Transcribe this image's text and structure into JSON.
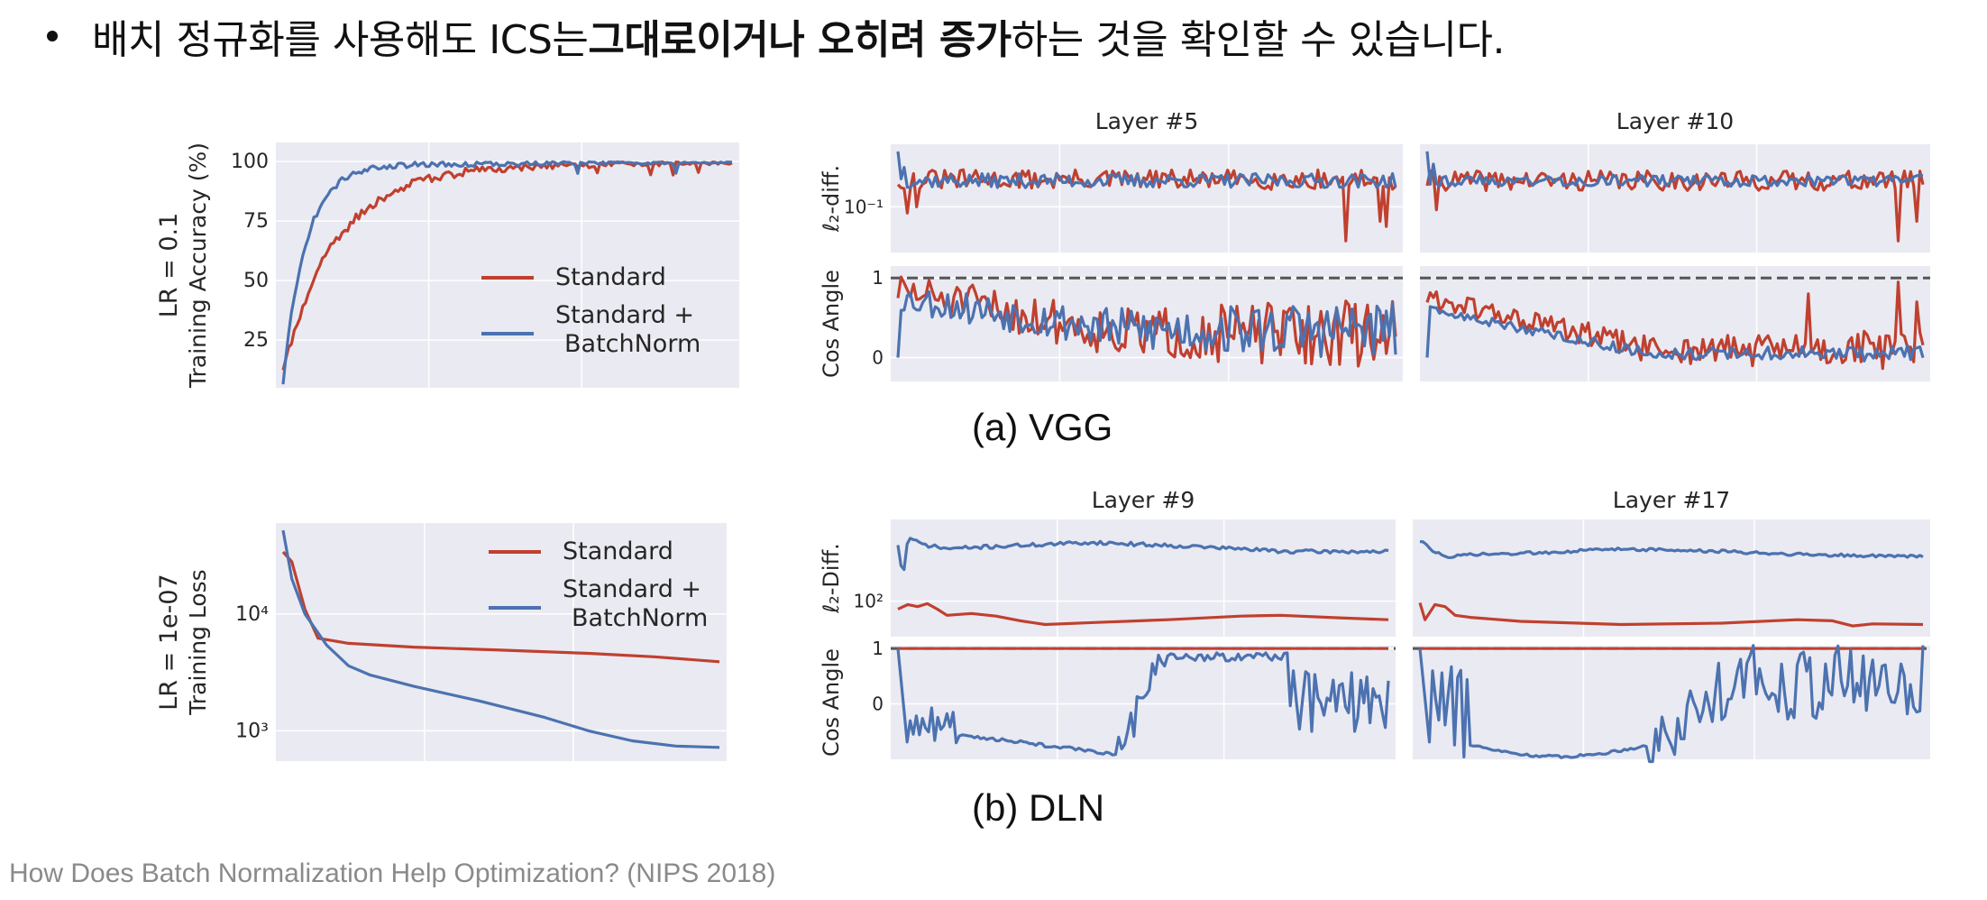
{
  "slide": {
    "bullet_parts": [
      "배치 정규화를 사용해도 ICS는 ",
      "그대로이거나 오히려 증가",
      "하는 것을 확인할 수 있습니다."
    ],
    "caption_a": "(a) VGG",
    "caption_b": "(b) DLN",
    "footer": "How Does Batch Normalization Help Optimization? (NIPS 2018)"
  },
  "colors": {
    "standard": "#c0402f",
    "batchnorm": "#4c72b0",
    "panel_bg": "#eaeaf2",
    "grid": "#ffffff",
    "dashed_ref": "#555555"
  },
  "legend": {
    "standard": "Standard",
    "batchnorm_line1": "Standard +",
    "batchnorm_line2": "BatchNorm"
  },
  "chart_data": [
    {
      "id": "vgg-accuracy",
      "type": "line",
      "row_label": "LR = 0.1",
      "ylabel": "Training Accuracy (%)",
      "yticks": [
        25,
        50,
        75,
        100
      ],
      "ylim": [
        5,
        108
      ],
      "xlim": [
        0,
        100
      ],
      "legend_placement": "center-right",
      "series": [
        {
          "name": "Standard",
          "color_key": "standard",
          "model": "sat",
          "start": 15,
          "end": 100,
          "rate": 0.085,
          "noise": 5,
          "seed": 11
        },
        {
          "name": "Standard + BatchNorm",
          "color_key": "batchnorm",
          "model": "sat",
          "start": 8,
          "end": 100,
          "rate": 0.2,
          "noise": 3,
          "seed": 23
        }
      ]
    },
    {
      "id": "dln-loss",
      "type": "line",
      "yscale": "log",
      "row_label": "LR = 1e-07",
      "ylabel": "Training Loss",
      "yticks": [
        {
          "value": 1000,
          "label": "10³"
        },
        {
          "value": 10000,
          "label": "10⁴"
        }
      ],
      "ylim": [
        550,
        60000
      ],
      "xlim": [
        0,
        100
      ],
      "legend_placement": "upper-right",
      "series": [
        {
          "name": "Standard",
          "color_key": "standard",
          "points": [
            [
              0,
              34000
            ],
            [
              2,
              28000
            ],
            [
              5,
              11000
            ],
            [
              8,
              6200
            ],
            [
              15,
              5600
            ],
            [
              30,
              5200
            ],
            [
              50,
              4900
            ],
            [
              70,
              4600
            ],
            [
              85,
              4300
            ],
            [
              100,
              3900
            ]
          ]
        },
        {
          "name": "Standard + BatchNorm",
          "color_key": "batchnorm",
          "points": [
            [
              0,
              52000
            ],
            [
              2,
              20000
            ],
            [
              5,
              10000
            ],
            [
              10,
              5400
            ],
            [
              15,
              3600
            ],
            [
              20,
              3000
            ],
            [
              30,
              2400
            ],
            [
              45,
              1800
            ],
            [
              60,
              1300
            ],
            [
              70,
              1000
            ],
            [
              80,
              820
            ],
            [
              90,
              740
            ],
            [
              100,
              720
            ]
          ]
        }
      ]
    },
    {
      "id": "vgg-layer5-l2",
      "type": "line",
      "title": "Layer #5",
      "ylabel": "ℓ₂-diff.",
      "yticks": [
        {
          "value": 0.1,
          "label": "10⁻¹"
        }
      ],
      "yscale": "log",
      "ylim": [
        0.02,
        0.9
      ],
      "xlim": [
        0,
        100
      ],
      "series": [
        {
          "name": "Standard",
          "color_key": "standard",
          "model": "noise",
          "base": 0.26,
          "rel": 0.35,
          "seed": 31,
          "dips": [
            [
              2,
              0.08
            ],
            [
              4,
              0.1
            ],
            [
              90,
              0.03
            ],
            [
              97,
              0.06
            ],
            [
              98,
              0.05
            ]
          ]
        },
        {
          "name": "Standard + BatchNorm",
          "color_key": "batchnorm",
          "model": "noise",
          "base": 0.25,
          "rel": 0.25,
          "seed": 37,
          "dips": [
            [
              0,
              0.7
            ],
            [
              1,
              0.4
            ]
          ]
        }
      ]
    },
    {
      "id": "vgg-layer10-l2",
      "type": "line",
      "title": "Layer #10",
      "ylabel": "",
      "yticks": [],
      "yscale": "log",
      "ylim": [
        0.02,
        0.9
      ],
      "xlim": [
        0,
        100
      ],
      "series": [
        {
          "name": "Standard",
          "color_key": "standard",
          "model": "noise",
          "base": 0.25,
          "rel": 0.35,
          "seed": 41,
          "dips": [
            [
              2,
              0.09
            ],
            [
              95,
              0.03
            ],
            [
              99,
              0.06
            ]
          ]
        },
        {
          "name": "Standard + BatchNorm",
          "color_key": "batchnorm",
          "model": "noise",
          "base": 0.25,
          "rel": 0.2,
          "seed": 43,
          "dips": [
            [
              0,
              0.7
            ],
            [
              1,
              0.45
            ]
          ]
        }
      ]
    },
    {
      "id": "vgg-layer5-cos",
      "type": "line",
      "ylabel": "Cos Angle",
      "yticks": [
        {
          "value": 0,
          "label": "0"
        },
        {
          "value": 1,
          "label": "1"
        }
      ],
      "ylim": [
        -0.3,
        1.15
      ],
      "xlim": [
        0,
        100
      ],
      "reference_line": 1,
      "series": [
        {
          "name": "Standard",
          "color_key": "standard",
          "model": "cos",
          "from": 0.85,
          "to": 0.3,
          "amp": 0.35,
          "seed": 51
        },
        {
          "name": "Standard + BatchNorm",
          "color_key": "batchnorm",
          "model": "cos",
          "from": 0.75,
          "to": 0.35,
          "amp": 0.3,
          "seed": 53,
          "dips": [
            [
              0,
              0.0
            ]
          ]
        }
      ]
    },
    {
      "id": "vgg-layer10-cos",
      "type": "line",
      "ylabel": "",
      "yticks": [],
      "ylim": [
        -0.3,
        1.15
      ],
      "xlim": [
        0,
        100
      ],
      "reference_line": 1,
      "series": [
        {
          "name": "Standard",
          "color_key": "standard",
          "model": "cos",
          "from": 0.75,
          "to": 0.1,
          "amp": 0.2,
          "seed": 61,
          "spikes": [
            [
              77,
              0.8
            ],
            [
              95,
              0.95
            ],
            [
              99,
              0.7
            ]
          ]
        },
        {
          "name": "Standard + BatchNorm",
          "color_key": "batchnorm",
          "model": "cos",
          "from": 0.6,
          "to": 0.05,
          "amp": 0.08,
          "seed": 63,
          "dips": [
            [
              0,
              0.0
            ]
          ]
        }
      ]
    },
    {
      "id": "dln-layer9-l2",
      "type": "line",
      "title": "Layer #9",
      "ylabel": "ℓ₂-Diff.",
      "yticks": [
        {
          "value": 100,
          "label": "10²"
        }
      ],
      "yscale": "log",
      "ylim": [
        10,
        20000
      ],
      "xlim": [
        0,
        100
      ],
      "series": [
        {
          "name": "Standard",
          "color_key": "standard",
          "points": [
            [
              0,
              60
            ],
            [
              2,
              80
            ],
            [
              4,
              70
            ],
            [
              6,
              85
            ],
            [
              8,
              60
            ],
            [
              10,
              40
            ],
            [
              15,
              45
            ],
            [
              20,
              38
            ],
            [
              25,
              28
            ],
            [
              30,
              22
            ],
            [
              40,
              25
            ],
            [
              55,
              30
            ],
            [
              70,
              38
            ],
            [
              78,
              40
            ],
            [
              90,
              34
            ],
            [
              100,
              30
            ]
          ]
        },
        {
          "name": "Standard + BatchNorm",
          "color_key": "batchnorm",
          "model": "noise_points",
          "rel": 0.12,
          "seed": 71,
          "points": [
            [
              0,
              4000
            ],
            [
              1,
              400
            ],
            [
              2,
              6000
            ],
            [
              5,
              4000
            ],
            [
              10,
              3000
            ],
            [
              20,
              3500
            ],
            [
              40,
              4500
            ],
            [
              60,
              3500
            ],
            [
              80,
              2500
            ],
            [
              100,
              2500
            ]
          ]
        }
      ]
    },
    {
      "id": "dln-layer17-l2",
      "type": "line",
      "title": "Layer #17",
      "ylabel": "",
      "yticks": [],
      "yscale": "log",
      "ylim": [
        10,
        20000
      ],
      "xlim": [
        0,
        100
      ],
      "series": [
        {
          "name": "Standard",
          "color_key": "standard",
          "points": [
            [
              0,
              90
            ],
            [
              1,
              30
            ],
            [
              3,
              80
            ],
            [
              5,
              70
            ],
            [
              7,
              40
            ],
            [
              10,
              35
            ],
            [
              20,
              27
            ],
            [
              40,
              22
            ],
            [
              60,
              24
            ],
            [
              75,
              30
            ],
            [
              82,
              28
            ],
            [
              86,
              20
            ],
            [
              90,
              23
            ],
            [
              100,
              22
            ]
          ]
        },
        {
          "name": "Standard + BatchNorm",
          "color_key": "batchnorm",
          "model": "noise_points",
          "rel": 0.1,
          "seed": 73,
          "points": [
            [
              0,
              5000
            ],
            [
              3,
              2500
            ],
            [
              6,
              1500
            ],
            [
              8,
              2000
            ],
            [
              20,
              2200
            ],
            [
              40,
              3000
            ],
            [
              60,
              2500
            ],
            [
              80,
              2000
            ],
            [
              100,
              1800
            ]
          ]
        }
      ]
    },
    {
      "id": "dln-layer9-cos",
      "type": "line",
      "ylabel": "Cos Angle",
      "yticks": [
        {
          "value": 0,
          "label": "0"
        },
        {
          "value": 1,
          "label": "1"
        }
      ],
      "ylim": [
        -1,
        1.05
      ],
      "xlim": [
        0,
        100
      ],
      "reference_line": 1,
      "series": [
        {
          "name": "Standard",
          "color_key": "standard",
          "points": [
            [
              0,
              1
            ],
            [
              100,
              1
            ]
          ]
        },
        {
          "name": "Standard + BatchNorm",
          "color_key": "batchnorm",
          "model": "dln_cos9",
          "seed": 81
        }
      ]
    },
    {
      "id": "dln-layer17-cos",
      "type": "line",
      "ylabel": "",
      "yticks": [],
      "ylim": [
        -1,
        1.05
      ],
      "xlim": [
        0,
        100
      ],
      "reference_line": 1,
      "series": [
        {
          "name": "Standard",
          "color_key": "standard",
          "points": [
            [
              0,
              1
            ],
            [
              100,
              1
            ]
          ]
        },
        {
          "name": "Standard + BatchNorm",
          "color_key": "batchnorm",
          "model": "dln_cos17",
          "seed": 91
        }
      ]
    }
  ]
}
